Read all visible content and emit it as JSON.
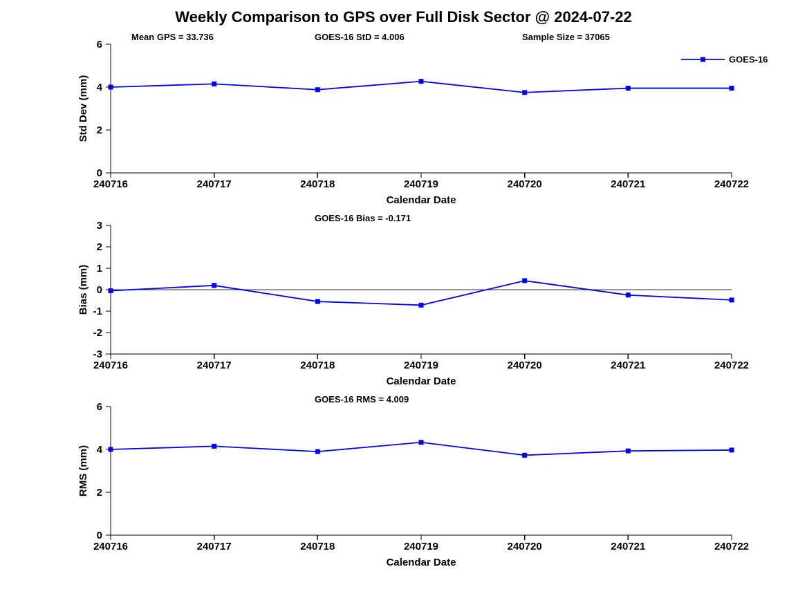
{
  "title": "Weekly Comparison to GPS over Full Disk Sector @ 2024-07-22",
  "series_color": "#0000EE",
  "axis_color": "#000000",
  "zero_line_color": "#333333",
  "chart_data": [
    {
      "type": "line",
      "name": "stddev",
      "categories": [
        "240716",
        "240717",
        "240718",
        "240719",
        "240720",
        "240721",
        "240722"
      ],
      "series": [
        {
          "name": "GOES-16",
          "values": [
            4.0,
            4.15,
            3.88,
            4.27,
            3.75,
            3.95,
            3.95
          ]
        }
      ],
      "xlabel": "Calendar Date",
      "ylabel": "Std Dev (mm)",
      "ylim": [
        0,
        6
      ],
      "yticks": [
        0,
        2,
        4,
        6
      ],
      "annotations": [
        "Mean GPS = 33.736",
        "GOES-16 StD = 4.006",
        "Sample Size = 37065"
      ],
      "legend": {
        "label": "GOES-16",
        "position": "top-right"
      },
      "zero_line": false,
      "grid": false
    },
    {
      "type": "line",
      "name": "bias",
      "categories": [
        "240716",
        "240717",
        "240718",
        "240719",
        "240720",
        "240721",
        "240722"
      ],
      "series": [
        {
          "name": "GOES-16",
          "values": [
            -0.05,
            0.2,
            -0.55,
            -0.72,
            0.42,
            -0.25,
            -0.48
          ]
        }
      ],
      "xlabel": "Calendar Date",
      "ylabel": "Bias (mm)",
      "ylim": [
        -3,
        3
      ],
      "yticks": [
        -3,
        -2,
        -1,
        0,
        1,
        2,
        3
      ],
      "annotations": [
        "GOES-16 Bias  = -0.171"
      ],
      "legend": null,
      "zero_line": true,
      "grid": false
    },
    {
      "type": "line",
      "name": "rms",
      "categories": [
        "240716",
        "240717",
        "240718",
        "240719",
        "240720",
        "240721",
        "240722"
      ],
      "series": [
        {
          "name": "GOES-16",
          "values": [
            4.0,
            4.15,
            3.9,
            4.33,
            3.73,
            3.93,
            3.97
          ]
        }
      ],
      "xlabel": "Calendar Date",
      "ylabel": "RMS (mm)",
      "ylim": [
        0,
        6
      ],
      "yticks": [
        0,
        2,
        4,
        6
      ],
      "annotations": [
        "GOES-16 RMS = 4.009"
      ],
      "legend": null,
      "zero_line": false,
      "grid": false
    }
  ]
}
